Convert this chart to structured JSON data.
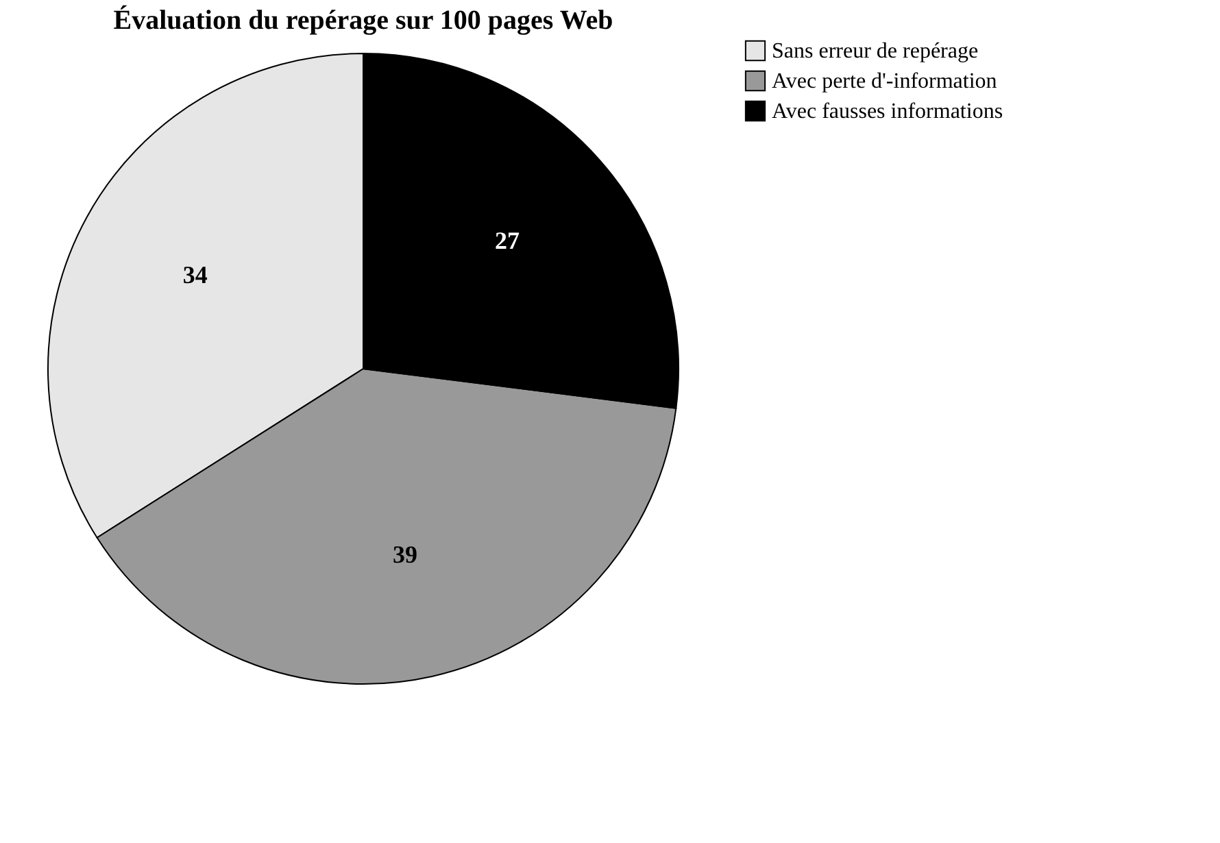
{
  "chart_data": {
    "type": "pie",
    "title": "Évaluation du repérage sur 100 pages Web",
    "categories": [
      "Sans erreur de repérage",
      "Avec perte d'-information",
      "Avec fausses informations"
    ],
    "values": [
      34,
      39,
      27
    ],
    "colors": [
      "#e6e6e6",
      "#999999",
      "#000000"
    ],
    "data_labels": true,
    "legend": "right"
  }
}
